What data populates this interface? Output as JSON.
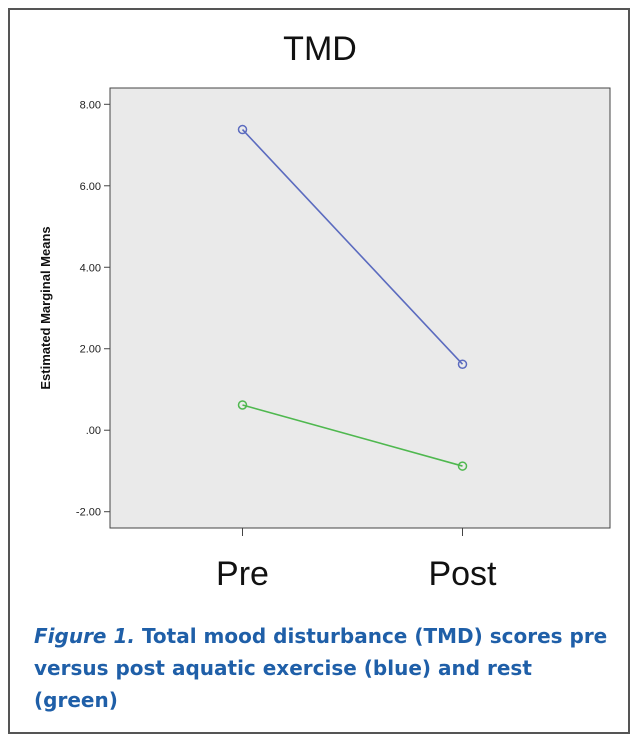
{
  "chart_data": {
    "type": "line",
    "title": "TMD",
    "xlabel": "",
    "ylabel": "Estimated Marginal Means",
    "categories": [
      "Pre",
      "Post"
    ],
    "ylim": [
      -2.4,
      8.4
    ],
    "yticks": [
      8.0,
      6.0,
      4.0,
      2.0,
      0.0,
      -2.0
    ],
    "ytick_labels": [
      "8.00",
      "6.00",
      "4.00",
      "2.00",
      ".00",
      "-2.00"
    ],
    "grid": false,
    "series": [
      {
        "color": "#5b6bbf",
        "values": [
          7.38,
          1.62
        ]
      },
      {
        "color": "#4fb84f",
        "values": [
          0.62,
          -0.88
        ]
      }
    ],
    "plot_background": "#eaeaea"
  },
  "caption": {
    "label": "Figure 1.",
    "text": " Total mood disturbance (TMD) scores pre versus post aquatic exercise (blue) and rest (green)"
  }
}
